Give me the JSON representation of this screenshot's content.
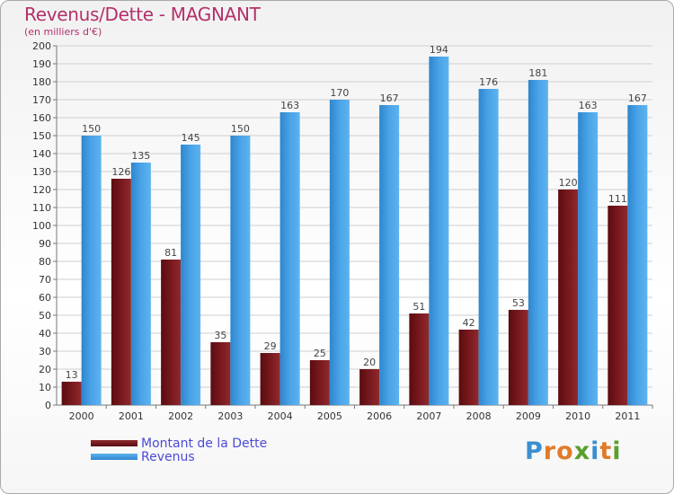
{
  "title": "Revenus/Dette - MAGNANT",
  "subtitle": "(en milliers d'€)",
  "brand": {
    "text": "Proxiti",
    "letters": [
      {
        "ch": "P",
        "color": "#3a8fd0"
      },
      {
        "ch": "r",
        "color": "#e07b2a"
      },
      {
        "ch": "o",
        "color": "#e07b2a"
      },
      {
        "ch": "x",
        "color": "#5aa02c"
      },
      {
        "ch": "i",
        "color": "#3a8fd0"
      },
      {
        "ch": "t",
        "color": "#e07b2a"
      },
      {
        "ch": "i",
        "color": "#5aa02c"
      }
    ]
  },
  "colors": {
    "debt": "#7b1a1f",
    "revenue": "#4aa3e8",
    "axis_text": "#333333",
    "value_text": "#444444",
    "title": "#b4306a",
    "legend_text": "#4b4bd6"
  },
  "chart_data": {
    "type": "bar",
    "title": "Revenus/Dette - MAGNANT",
    "subtitle": "(en milliers d'€)",
    "categories": [
      "2000",
      "2001",
      "2002",
      "2003",
      "2004",
      "2005",
      "2006",
      "2007",
      "2008",
      "2009",
      "2010",
      "2011"
    ],
    "series": [
      {
        "name": "Montant de la Dette",
        "values": [
          13,
          126,
          81,
          35,
          29,
          25,
          20,
          51,
          42,
          53,
          120,
          111
        ]
      },
      {
        "name": "Revenus",
        "values": [
          150,
          135,
          145,
          150,
          163,
          170,
          167,
          194,
          176,
          181,
          163,
          167
        ]
      }
    ],
    "ylim": [
      0,
      200
    ],
    "yticks": [
      0,
      10,
      20,
      30,
      40,
      50,
      60,
      70,
      80,
      90,
      100,
      110,
      120,
      130,
      140,
      150,
      160,
      170,
      180,
      190,
      200
    ],
    "grid": true,
    "legend_position": "bottom-left"
  }
}
